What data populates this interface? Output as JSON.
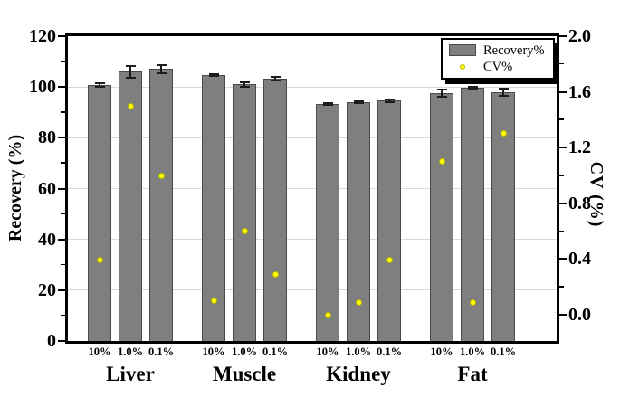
{
  "chart_data": {
    "type": "bar",
    "title": "",
    "categories": [
      "Liver",
      "Muscle",
      "Kidney",
      "Fat"
    ],
    "sub_categories": [
      "10%",
      "1.0%",
      "0.1%"
    ],
    "series": [
      {
        "name": "Recovery%",
        "plot": "bar",
        "axis": "left",
        "values": [
          [
            100.8,
            106.0,
            107.1
          ],
          [
            104.7,
            101.0,
            103.3
          ],
          [
            93.4,
            93.9,
            94.6
          ],
          [
            97.6,
            99.6,
            98.0
          ]
        ],
        "errors": [
          [
            0.7,
            2.3,
            1.6
          ],
          [
            0.5,
            0.9,
            0.6
          ],
          [
            0.3,
            0.4,
            0.6
          ],
          [
            1.4,
            0.4,
            1.4
          ]
        ]
      },
      {
        "name": "CV%",
        "plot": "scatter",
        "axis": "right",
        "values": [
          [
            0.39,
            1.5,
            1.0
          ],
          [
            0.1,
            0.6,
            0.29
          ],
          [
            0.0,
            0.09,
            0.39
          ],
          [
            1.1,
            0.09,
            1.3
          ]
        ]
      }
    ],
    "left_axis": {
      "label": "Recovery (%)",
      "min": 0,
      "max": 120,
      "major_ticks": [
        0,
        20,
        40,
        60,
        80,
        100,
        120
      ],
      "tick_labels": [
        "0",
        "20",
        "40",
        "60",
        "80",
        "100",
        "120"
      ],
      "minor_ticks": [
        10,
        30,
        50,
        70,
        90,
        110
      ]
    },
    "right_axis": {
      "label": "CV (%)",
      "major_ticks": [
        0.0,
        0.4,
        0.8,
        1.2,
        1.6,
        2.0
      ],
      "tick_labels": [
        "0.0",
        "0.4",
        "0.8",
        "1.2",
        "1.6",
        "2.0"
      ],
      "minor_ticks": [
        0.2,
        0.6,
        1.0,
        1.4,
        1.8
      ]
    },
    "grid": "horizontal",
    "legend": {
      "position": "top-right",
      "entries": [
        {
          "label": "Recovery%",
          "marker": "bar-swatch"
        },
        {
          "label": "CV%",
          "marker": "yellow-dot"
        }
      ]
    },
    "colors": {
      "bar_fill": "#7f7f7f",
      "bar_border": "#4a4a4a",
      "error_bar": "#1c1c1c",
      "dot_fill": "#ffff00",
      "dot_border": "#b8b800",
      "grid": "#d9d9d9",
      "axis": "#000000",
      "background": "#ffffff"
    }
  }
}
